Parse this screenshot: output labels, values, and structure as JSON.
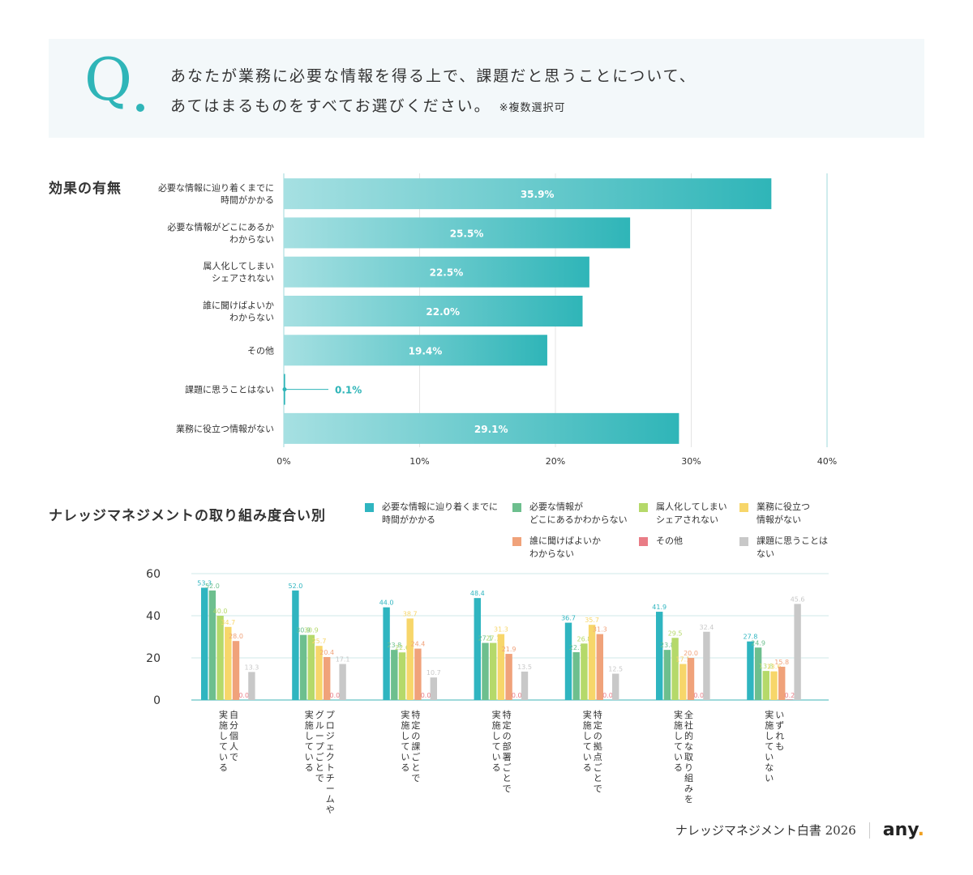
{
  "question": {
    "mark": "Q",
    "line1": "あなたが業務に必要な情報を得る上で、課題だと思うことについて、",
    "line2": "あてはまるものをすべてお選びください。",
    "note": "※複数選択可"
  },
  "footer": {
    "title": "ナレッジマネジメント白書 2026",
    "logo": "any",
    "logo_dot": "."
  },
  "chart_data": [
    {
      "type": "bar",
      "orientation": "horizontal",
      "title": "効果の有無",
      "categories": [
        "必要な情報に辿り着くまでに\n時間がかかる",
        "必要な情報がどこにあるか\nわからない",
        "属人化してしまい\nシェアされない",
        "誰に聞けばよいか\nわからない",
        "その他",
        "課題に思うことはない",
        "業務に役立つ情報がない"
      ],
      "values": [
        35.9,
        25.5,
        22.5,
        22.0,
        19.4,
        0.1,
        29.1
      ],
      "value_suffix": "%",
      "xlim": [
        0,
        40
      ],
      "xticks": [
        0,
        10,
        20,
        30,
        40
      ],
      "grid": true,
      "color": "#2fb5b8"
    },
    {
      "type": "bar",
      "orientation": "vertical",
      "title": "ナレッジマネジメントの取り組み度合い別",
      "categories": [
        "自分個人で\n実施している",
        "プロジェクトチームや\nグループごとで\n実施している",
        "特定の課ごとで\n実施している",
        "特定の部署ごとで\n実施している",
        "特定の拠点ごとで\n実施している",
        "全社的な取り組みを\n実施している",
        "いずれも\n実施していない"
      ],
      "ylim": [
        0,
        60
      ],
      "yticks": [
        0,
        20,
        40,
        60
      ],
      "grid": true,
      "legend_position": "top",
      "series": [
        {
          "name": "必要な情報に辿り着くまでに\n時間がかかる",
          "color": "#2fb5c0",
          "values": [
            53.3,
            52.0,
            44.0,
            48.4,
            36.7,
            41.9,
            27.8
          ]
        },
        {
          "name": "必要な情報が\nどこにあるかわからない",
          "color": "#6dbf8e",
          "values": [
            52.0,
            30.9,
            23.8,
            27.1,
            22.7,
            23.8,
            24.9
          ]
        },
        {
          "name": "属人化してしまい\nシェアされない",
          "color": "#b5d96a",
          "values": [
            40.0,
            30.9,
            22.6,
            27.1,
            26.8,
            29.5,
            13.8
          ]
        },
        {
          "name": "業務に役立つ\n情報がない",
          "color": "#f7d66a",
          "values": [
            34.7,
            25.7,
            38.7,
            31.3,
            35.7,
            17.1,
            13.6
          ]
        },
        {
          "name": "誰に聞けばよいか\nわからない",
          "color": "#f0a27a",
          "values": [
            28.0,
            20.4,
            24.4,
            21.9,
            31.3,
            20.0,
            15.8
          ]
        },
        {
          "name": "その他",
          "color": "#e97c86",
          "values": [
            0.0,
            0.0,
            0.0,
            0.0,
            0.0,
            0.0,
            0.2
          ]
        },
        {
          "name": "課題に思うことは\nない",
          "color": "#c8c8c8",
          "values": [
            13.3,
            17.1,
            10.7,
            13.5,
            12.5,
            32.4,
            45.6
          ]
        }
      ]
    }
  ]
}
